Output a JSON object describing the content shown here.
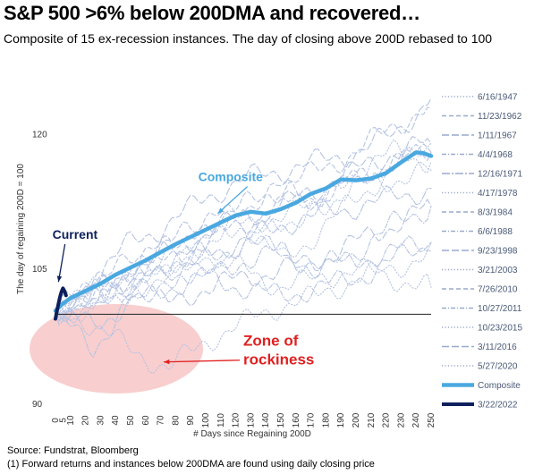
{
  "title": "S&P 500 >6% below 200DMA and recovered…",
  "subtitle": "Composite of 15 ex-recession instances. The day of closing above 200D rebased to 100",
  "footer": {
    "source": "Source: Fundstrat, Bloomberg",
    "note": "(1) Forward returns and instances below 200DMA are found using daily closing price"
  },
  "colors": {
    "composite": "#4aa8e0",
    "current": "#0d1f5c",
    "instances": "#b5c3e2",
    "zone": "#f7c9c9",
    "annotation_red": "#e02020"
  },
  "chart_data": {
    "type": "line",
    "title": "S&P 500 >6% below 200DMA and recovered…",
    "xlabel": "# Days since Regaining 200D",
    "ylabel": "The day of regaining 200D = 100",
    "xlim": [
      0,
      250
    ],
    "ylim": [
      90,
      125
    ],
    "x_ticks": [
      0,
      5,
      10,
      20,
      30,
      40,
      50,
      60,
      70,
      80,
      90,
      100,
      110,
      120,
      130,
      140,
      150,
      160,
      170,
      180,
      190,
      200,
      210,
      220,
      230,
      240,
      250
    ],
    "y_ticks": [
      90,
      105,
      120
    ],
    "reference_line": 100,
    "legend_position": "right",
    "series": [
      {
        "name": "6/16/1947",
        "style": "dotted",
        "points": [
          [
            0,
            100
          ],
          [
            25,
            102
          ],
          [
            50,
            104
          ],
          [
            75,
            106
          ],
          [
            100,
            105
          ],
          [
            125,
            108
          ],
          [
            150,
            110
          ],
          [
            175,
            112
          ],
          [
            200,
            116
          ],
          [
            225,
            118
          ],
          [
            250,
            117
          ]
        ]
      },
      {
        "name": "11/23/1962",
        "style": "dash",
        "points": [
          [
            0,
            100
          ],
          [
            25,
            103
          ],
          [
            50,
            106
          ],
          [
            75,
            108
          ],
          [
            100,
            110
          ],
          [
            125,
            112
          ],
          [
            150,
            114
          ],
          [
            175,
            116
          ],
          [
            200,
            118
          ],
          [
            225,
            121
          ],
          [
            250,
            123
          ]
        ]
      },
      {
        "name": "1/11/1967",
        "style": "longdash",
        "points": [
          [
            0,
            100
          ],
          [
            25,
            103
          ],
          [
            50,
            105
          ],
          [
            75,
            107
          ],
          [
            100,
            109
          ],
          [
            125,
            111
          ],
          [
            150,
            112
          ],
          [
            175,
            114
          ],
          [
            200,
            116
          ],
          [
            225,
            118
          ],
          [
            250,
            119
          ]
        ]
      },
      {
        "name": "4/4/1968",
        "style": "dashdot",
        "points": [
          [
            0,
            100
          ],
          [
            25,
            102
          ],
          [
            50,
            103
          ],
          [
            75,
            105
          ],
          [
            100,
            104
          ],
          [
            125,
            106
          ],
          [
            150,
            107
          ],
          [
            175,
            105
          ],
          [
            200,
            106
          ],
          [
            225,
            107
          ],
          [
            250,
            108
          ]
        ]
      },
      {
        "name": "12/16/1971",
        "style": "longdashdot",
        "points": [
          [
            0,
            100
          ],
          [
            25,
            102
          ],
          [
            50,
            104
          ],
          [
            75,
            106
          ],
          [
            100,
            107
          ],
          [
            125,
            108
          ],
          [
            150,
            110
          ],
          [
            175,
            111
          ],
          [
            200,
            112
          ],
          [
            225,
            113
          ],
          [
            250,
            114
          ]
        ]
      },
      {
        "name": "4/17/1978",
        "style": "dotted",
        "points": [
          [
            0,
            100
          ],
          [
            25,
            101
          ],
          [
            50,
            103
          ],
          [
            75,
            104
          ],
          [
            100,
            106
          ],
          [
            125,
            105
          ],
          [
            150,
            103
          ],
          [
            175,
            104
          ],
          [
            200,
            105
          ],
          [
            225,
            104
          ],
          [
            250,
            103
          ]
        ]
      },
      {
        "name": "8/3/1984",
        "style": "dash",
        "points": [
          [
            0,
            100
          ],
          [
            25,
            102
          ],
          [
            50,
            104
          ],
          [
            75,
            106
          ],
          [
            100,
            108
          ],
          [
            125,
            110
          ],
          [
            150,
            112
          ],
          [
            175,
            113
          ],
          [
            200,
            115
          ],
          [
            225,
            117
          ],
          [
            250,
            118
          ]
        ]
      },
      {
        "name": "6/6/1988",
        "style": "dashdot",
        "points": [
          [
            0,
            100
          ],
          [
            25,
            99
          ],
          [
            50,
            101
          ],
          [
            75,
            103
          ],
          [
            100,
            104
          ],
          [
            125,
            103
          ],
          [
            150,
            102
          ],
          [
            175,
            103
          ],
          [
            200,
            104
          ],
          [
            225,
            106
          ],
          [
            250,
            108
          ]
        ]
      },
      {
        "name": "9/23/1998",
        "style": "longdash",
        "points": [
          [
            0,
            100
          ],
          [
            25,
            104
          ],
          [
            50,
            108
          ],
          [
            75,
            110
          ],
          [
            100,
            113
          ],
          [
            125,
            115
          ],
          [
            150,
            116
          ],
          [
            175,
            117
          ],
          [
            200,
            118
          ],
          [
            225,
            120
          ],
          [
            250,
            124
          ]
        ]
      },
      {
        "name": "3/21/2003",
        "style": "dotted",
        "points": [
          [
            0,
            100
          ],
          [
            25,
            101
          ],
          [
            50,
            104
          ],
          [
            75,
            106
          ],
          [
            100,
            108
          ],
          [
            125,
            110
          ],
          [
            150,
            111
          ],
          [
            175,
            112
          ],
          [
            200,
            114
          ],
          [
            225,
            115
          ],
          [
            250,
            116
          ]
        ]
      },
      {
        "name": "7/26/2010",
        "style": "dash",
        "points": [
          [
            0,
            100
          ],
          [
            25,
            103
          ],
          [
            50,
            105
          ],
          [
            75,
            108
          ],
          [
            100,
            110
          ],
          [
            125,
            112
          ],
          [
            150,
            114
          ],
          [
            175,
            113
          ],
          [
            200,
            115
          ],
          [
            225,
            117
          ],
          [
            250,
            118
          ]
        ]
      },
      {
        "name": "10/27/2011",
        "style": "dashdot",
        "points": [
          [
            0,
            100
          ],
          [
            25,
            96
          ],
          [
            50,
            102
          ],
          [
            75,
            104
          ],
          [
            100,
            106
          ],
          [
            125,
            108
          ],
          [
            150,
            107
          ],
          [
            175,
            105
          ],
          [
            200,
            107
          ],
          [
            225,
            110
          ],
          [
            250,
            112
          ]
        ]
      },
      {
        "name": "10/23/2015",
        "style": "dotted",
        "points": [
          [
            0,
            100
          ],
          [
            25,
            99
          ],
          [
            50,
            96
          ],
          [
            75,
            94
          ],
          [
            100,
            97
          ],
          [
            125,
            99
          ],
          [
            150,
            101
          ],
          [
            175,
            102
          ],
          [
            200,
            104
          ],
          [
            225,
            105
          ],
          [
            250,
            107
          ]
        ]
      },
      {
        "name": "3/11/2016",
        "style": "longdash",
        "points": [
          [
            0,
            100
          ],
          [
            25,
            102
          ],
          [
            50,
            103
          ],
          [
            75,
            101
          ],
          [
            100,
            103
          ],
          [
            125,
            104
          ],
          [
            150,
            105
          ],
          [
            175,
            106
          ],
          [
            200,
            108
          ],
          [
            225,
            110
          ],
          [
            250,
            112
          ]
        ]
      },
      {
        "name": "5/27/2020",
        "style": "dotted",
        "points": [
          [
            0,
            100
          ],
          [
            25,
            103
          ],
          [
            50,
            102
          ],
          [
            75,
            105
          ],
          [
            100,
            108
          ],
          [
            125,
            110
          ],
          [
            150,
            106
          ],
          [
            175,
            109
          ],
          [
            200,
            113
          ],
          [
            225,
            116
          ],
          [
            250,
            119
          ]
        ]
      },
      {
        "name": "Composite",
        "style": "composite",
        "points": [
          [
            0,
            100.4
          ],
          [
            5,
            101.2
          ],
          [
            10,
            101.8
          ],
          [
            20,
            102.6
          ],
          [
            30,
            103.4
          ],
          [
            40,
            104.4
          ],
          [
            50,
            105.2
          ],
          [
            60,
            106.0
          ],
          [
            70,
            106.9
          ],
          [
            80,
            107.8
          ],
          [
            90,
            108.6
          ],
          [
            100,
            109.4
          ],
          [
            110,
            110.2
          ],
          [
            120,
            111.0
          ],
          [
            130,
            111.4
          ],
          [
            140,
            111.2
          ],
          [
            150,
            111.7
          ],
          [
            160,
            112.4
          ],
          [
            170,
            113.4
          ],
          [
            180,
            114.0
          ],
          [
            190,
            115.0
          ],
          [
            200,
            114.9
          ],
          [
            210,
            115.1
          ],
          [
            220,
            115.7
          ],
          [
            230,
            116.9
          ],
          [
            240,
            118.0
          ],
          [
            245,
            117.9
          ],
          [
            250,
            117.6
          ]
        ]
      },
      {
        "name": "3/22/2022",
        "style": "current",
        "points": [
          [
            0,
            99.5
          ],
          [
            1,
            100.4
          ],
          [
            2,
            101.2
          ],
          [
            3,
            101.9
          ],
          [
            4,
            102.5
          ],
          [
            5,
            102.9
          ],
          [
            6,
            102.6
          ],
          [
            7,
            102.1
          ]
        ]
      }
    ],
    "annotations": [
      {
        "text": "Composite",
        "color": "#4aa8e0",
        "at": [
          95,
          114.8
        ],
        "arrow_to": [
          108,
          111.2
        ]
      },
      {
        "text": "Current",
        "color": "#0d1f5c",
        "at": [
          -2,
          108.4
        ],
        "arrow_to": [
          2,
          103.6
        ]
      },
      {
        "text": "Zone of",
        "color": "#e02020",
        "at": [
          125,
          96.5
        ]
      },
      {
        "text": "rockiness",
        "color": "#e02020",
        "at": [
          125,
          94.4
        ],
        "arrow_to": [
          72,
          94.7
        ]
      }
    ]
  }
}
